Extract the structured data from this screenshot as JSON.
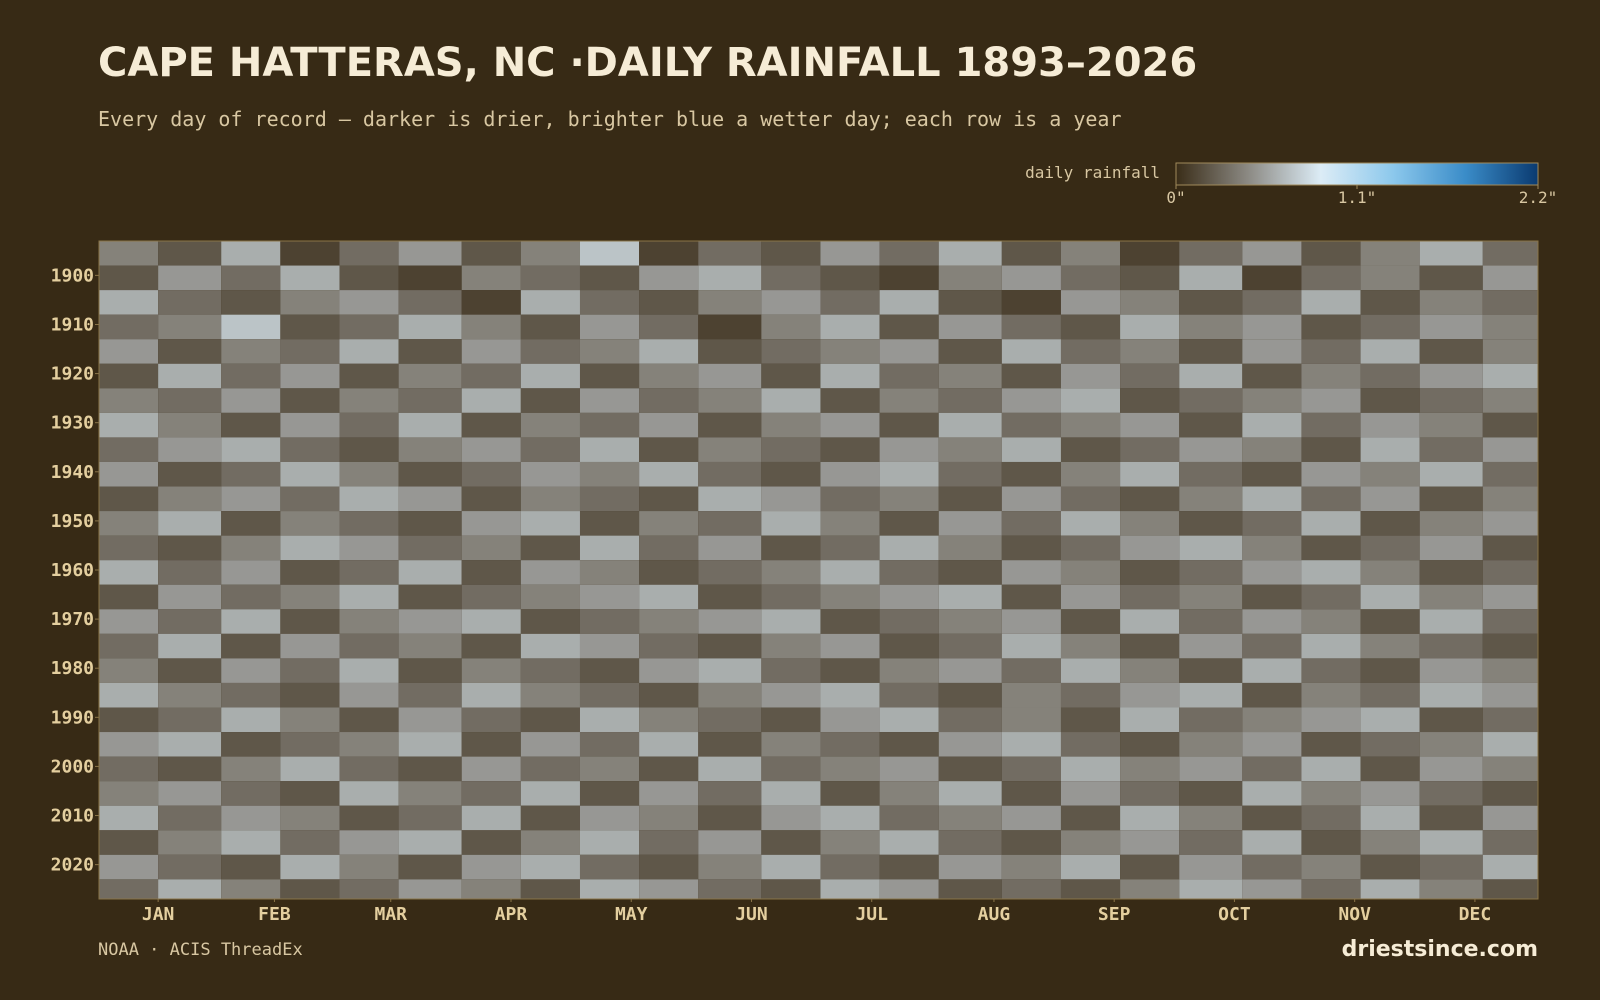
{
  "chart_data": {
    "type": "heatmap",
    "title": "CAPE HATTERAS, NC ·DAILY RAINFALL 1893–2026",
    "subtitle": "Every day of record — darker is drier, brighter blue a wetter day; each row is a year",
    "source": "NOAA · ACIS ThreadEx",
    "brand": "driestsince.com",
    "xlim": [
      1,
      366
    ],
    "ylim": [
      1893,
      2027
    ],
    "x": [
      1,
      16,
      32,
      47,
      62,
      77,
      93,
      108,
      123,
      138,
      153,
      169,
      184,
      199,
      214,
      230,
      245,
      260,
      275,
      291,
      306,
      321,
      336,
      352
    ],
    "y": [
      1893,
      1898,
      1903,
      1908,
      1913,
      1918,
      1923,
      1928,
      1933,
      1938,
      1943,
      1948,
      1953,
      1958,
      1963,
      1968,
      1973,
      1978,
      1983,
      1988,
      1993,
      1998,
      2003,
      2008,
      2013,
      2018,
      2023
    ],
    "xticks": [
      {
        "value": 16,
        "label": "JAN"
      },
      {
        "value": 45.5,
        "label": "FEB"
      },
      {
        "value": 75,
        "label": "MAR"
      },
      {
        "value": 105.5,
        "label": "APR"
      },
      {
        "value": 136,
        "label": "MAY"
      },
      {
        "value": 166.5,
        "label": "JUN"
      },
      {
        "value": 197,
        "label": "JUL"
      },
      {
        "value": 228,
        "label": "AUG"
      },
      {
        "value": 258.5,
        "label": "SEP"
      },
      {
        "value": 289,
        "label": "OCT"
      },
      {
        "value": 319.5,
        "label": "NOV"
      },
      {
        "value": 350,
        "label": "DEC"
      }
    ],
    "yticks": [
      1900,
      1910,
      1920,
      1930,
      1940,
      1950,
      1960,
      1970,
      1980,
      1990,
      2000,
      2010,
      2020
    ],
    "colorbar": {
      "label": "daily rainfall",
      "lim": [
        0,
        2.2
      ],
      "ticks": [
        {
          "value": 0,
          "label": "0\""
        },
        {
          "value": 1.1,
          "label": "1.1\""
        },
        {
          "value": 2.2,
          "label": "2.2\""
        }
      ],
      "colors": [
        "#3a2d18",
        "#8c8a84",
        "#dcecf6",
        "#8cc8ec",
        "#3a8cc8",
        "#0a3a70"
      ]
    },
    "values": [
      [
        0.4,
        0.2,
        0.6,
        0.1,
        0.3,
        0.5,
        0.2,
        0.4,
        0.7,
        0.1,
        0.3,
        0.2,
        0.5,
        0.3,
        0.6,
        0.2,
        0.4,
        0.1,
        0.3,
        0.5,
        0.2,
        0.4,
        0.6,
        0.3
      ],
      [
        0.2,
        0.5,
        0.3,
        0.6,
        0.2,
        0.1,
        0.4,
        0.3,
        0.2,
        0.5,
        0.6,
        0.3,
        0.2,
        0.1,
        0.4,
        0.5,
        0.3,
        0.2,
        0.6,
        0.1,
        0.3,
        0.4,
        0.2,
        0.5
      ],
      [
        0.6,
        0.3,
        0.2,
        0.4,
        0.5,
        0.3,
        0.1,
        0.6,
        0.3,
        0.2,
        0.4,
        0.5,
        0.3,
        0.6,
        0.2,
        0.1,
        0.5,
        0.4,
        0.2,
        0.3,
        0.6,
        0.2,
        0.4,
        0.3
      ],
      [
        0.3,
        0.4,
        0.7,
        0.2,
        0.3,
        0.6,
        0.4,
        0.2,
        0.5,
        0.3,
        0.1,
        0.4,
        0.6,
        0.2,
        0.5,
        0.3,
        0.2,
        0.6,
        0.4,
        0.5,
        0.2,
        0.3,
        0.5,
        0.4
      ],
      [
        0.5,
        0.2,
        0.4,
        0.3,
        0.6,
        0.2,
        0.5,
        0.3,
        0.4,
        0.6,
        0.2,
        0.3,
        0.4,
        0.5,
        0.2,
        0.6,
        0.3,
        0.4,
        0.2,
        0.5,
        0.3,
        0.6,
        0.2,
        0.4
      ],
      [
        0.2,
        0.6,
        0.3,
        0.5,
        0.2,
        0.4,
        0.3,
        0.6,
        0.2,
        0.4,
        0.5,
        0.2,
        0.6,
        0.3,
        0.4,
        0.2,
        0.5,
        0.3,
        0.6,
        0.2,
        0.4,
        0.3,
        0.5,
        0.6
      ],
      [
        0.4,
        0.3,
        0.5,
        0.2,
        0.4,
        0.3,
        0.6,
        0.2,
        0.5,
        0.3,
        0.4,
        0.6,
        0.2,
        0.4,
        0.3,
        0.5,
        0.6,
        0.2,
        0.3,
        0.4,
        0.5,
        0.2,
        0.3,
        0.4
      ],
      [
        0.6,
        0.4,
        0.2,
        0.5,
        0.3,
        0.6,
        0.2,
        0.4,
        0.3,
        0.5,
        0.2,
        0.4,
        0.5,
        0.2,
        0.6,
        0.3,
        0.4,
        0.5,
        0.2,
        0.6,
        0.3,
        0.5,
        0.4,
        0.2
      ],
      [
        0.3,
        0.5,
        0.6,
        0.3,
        0.2,
        0.4,
        0.5,
        0.3,
        0.6,
        0.2,
        0.4,
        0.3,
        0.2,
        0.5,
        0.4,
        0.6,
        0.2,
        0.3,
        0.5,
        0.4,
        0.2,
        0.6,
        0.3,
        0.5
      ],
      [
        0.5,
        0.2,
        0.3,
        0.6,
        0.4,
        0.2,
        0.3,
        0.5,
        0.4,
        0.6,
        0.3,
        0.2,
        0.5,
        0.6,
        0.3,
        0.2,
        0.4,
        0.6,
        0.3,
        0.2,
        0.5,
        0.4,
        0.6,
        0.3
      ],
      [
        0.2,
        0.4,
        0.5,
        0.3,
        0.6,
        0.5,
        0.2,
        0.4,
        0.3,
        0.2,
        0.6,
        0.5,
        0.3,
        0.4,
        0.2,
        0.5,
        0.3,
        0.2,
        0.4,
        0.6,
        0.3,
        0.5,
        0.2,
        0.4
      ],
      [
        0.4,
        0.6,
        0.2,
        0.4,
        0.3,
        0.2,
        0.5,
        0.6,
        0.2,
        0.4,
        0.3,
        0.6,
        0.4,
        0.2,
        0.5,
        0.3,
        0.6,
        0.4,
        0.2,
        0.3,
        0.6,
        0.2,
        0.4,
        0.5
      ],
      [
        0.3,
        0.2,
        0.4,
        0.6,
        0.5,
        0.3,
        0.4,
        0.2,
        0.6,
        0.3,
        0.5,
        0.2,
        0.3,
        0.6,
        0.4,
        0.2,
        0.3,
        0.5,
        0.6,
        0.4,
        0.2,
        0.3,
        0.5,
        0.2
      ],
      [
        0.6,
        0.3,
        0.5,
        0.2,
        0.3,
        0.6,
        0.2,
        0.5,
        0.4,
        0.2,
        0.3,
        0.4,
        0.6,
        0.3,
        0.2,
        0.5,
        0.4,
        0.2,
        0.3,
        0.5,
        0.6,
        0.4,
        0.2,
        0.3
      ],
      [
        0.2,
        0.5,
        0.3,
        0.4,
        0.6,
        0.2,
        0.3,
        0.4,
        0.5,
        0.6,
        0.2,
        0.3,
        0.4,
        0.5,
        0.6,
        0.2,
        0.5,
        0.3,
        0.4,
        0.2,
        0.3,
        0.6,
        0.4,
        0.5
      ],
      [
        0.5,
        0.3,
        0.6,
        0.2,
        0.4,
        0.5,
        0.6,
        0.2,
        0.3,
        0.4,
        0.5,
        0.6,
        0.2,
        0.3,
        0.4,
        0.5,
        0.2,
        0.6,
        0.3,
        0.5,
        0.4,
        0.2,
        0.6,
        0.3
      ],
      [
        0.3,
        0.6,
        0.2,
        0.5,
        0.3,
        0.4,
        0.2,
        0.6,
        0.5,
        0.3,
        0.2,
        0.4,
        0.5,
        0.2,
        0.3,
        0.6,
        0.4,
        0.2,
        0.5,
        0.3,
        0.6,
        0.4,
        0.3,
        0.2
      ],
      [
        0.4,
        0.2,
        0.5,
        0.3,
        0.6,
        0.2,
        0.4,
        0.3,
        0.2,
        0.5,
        0.6,
        0.3,
        0.2,
        0.4,
        0.5,
        0.3,
        0.6,
        0.4,
        0.2,
        0.6,
        0.3,
        0.2,
        0.5,
        0.4
      ],
      [
        0.6,
        0.4,
        0.3,
        0.2,
        0.5,
        0.3,
        0.6,
        0.4,
        0.3,
        0.2,
        0.4,
        0.5,
        0.6,
        0.3,
        0.2,
        0.4,
        0.3,
        0.5,
        0.6,
        0.2,
        0.4,
        0.3,
        0.6,
        0.5
      ],
      [
        0.2,
        0.3,
        0.6,
        0.4,
        0.2,
        0.5,
        0.3,
        0.2,
        0.6,
        0.4,
        0.3,
        0.2,
        0.5,
        0.6,
        0.3,
        0.4,
        0.2,
        0.6,
        0.3,
        0.4,
        0.5,
        0.6,
        0.2,
        0.3
      ],
      [
        0.5,
        0.6,
        0.2,
        0.3,
        0.4,
        0.6,
        0.2,
        0.5,
        0.3,
        0.6,
        0.2,
        0.4,
        0.3,
        0.2,
        0.5,
        0.6,
        0.3,
        0.2,
        0.4,
        0.5,
        0.2,
        0.3,
        0.4,
        0.6
      ],
      [
        0.3,
        0.2,
        0.4,
        0.6,
        0.3,
        0.2,
        0.5,
        0.3,
        0.4,
        0.2,
        0.6,
        0.3,
        0.4,
        0.5,
        0.2,
        0.3,
        0.6,
        0.4,
        0.5,
        0.3,
        0.6,
        0.2,
        0.5,
        0.4
      ],
      [
        0.4,
        0.5,
        0.3,
        0.2,
        0.6,
        0.4,
        0.3,
        0.6,
        0.2,
        0.5,
        0.3,
        0.6,
        0.2,
        0.4,
        0.6,
        0.2,
        0.5,
        0.3,
        0.2,
        0.6,
        0.4,
        0.5,
        0.3,
        0.2
      ],
      [
        0.6,
        0.3,
        0.5,
        0.4,
        0.2,
        0.3,
        0.6,
        0.2,
        0.5,
        0.4,
        0.2,
        0.5,
        0.6,
        0.3,
        0.4,
        0.5,
        0.2,
        0.6,
        0.4,
        0.2,
        0.3,
        0.6,
        0.2,
        0.5
      ],
      [
        0.2,
        0.4,
        0.6,
        0.3,
        0.5,
        0.6,
        0.2,
        0.4,
        0.6,
        0.3,
        0.5,
        0.2,
        0.4,
        0.6,
        0.3,
        0.2,
        0.4,
        0.5,
        0.3,
        0.6,
        0.2,
        0.4,
        0.6,
        0.3
      ],
      [
        0.5,
        0.3,
        0.2,
        0.6,
        0.4,
        0.2,
        0.5,
        0.6,
        0.3,
        0.2,
        0.4,
        0.6,
        0.3,
        0.2,
        0.5,
        0.4,
        0.6,
        0.2,
        0.5,
        0.3,
        0.4,
        0.2,
        0.3,
        0.6
      ],
      [
        0.3,
        0.6,
        0.4,
        0.2,
        0.3,
        0.5,
        0.4,
        0.2,
        0.6,
        0.5,
        0.3,
        0.2,
        0.6,
        0.5,
        0.2,
        0.3,
        0.2,
        0.4,
        0.6,
        0.5,
        0.3,
        0.6,
        0.4,
        0.2
      ]
    ]
  }
}
